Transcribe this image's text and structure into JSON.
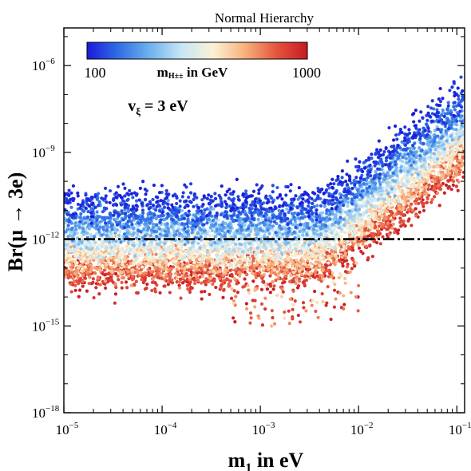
{
  "chart_data": {
    "type": "scatter",
    "title": "Normal Hierarchy",
    "xlabel": {
      "main": "m",
      "sub": "1",
      "rest": " in eV"
    },
    "ylabel": "Br(μ → 3e)",
    "x_scale": "log",
    "y_scale": "log",
    "xlim": [
      1e-05,
      0.12
    ],
    "ylim": [
      1e-18,
      2e-05
    ],
    "x_ticks": [
      {
        "value": 1e-05,
        "base": "10",
        "exp": "−5"
      },
      {
        "value": 0.0001,
        "base": "10",
        "exp": "−4"
      },
      {
        "value": 0.001,
        "base": "10",
        "exp": "−3"
      },
      {
        "value": 0.01,
        "base": "10",
        "exp": "−2"
      },
      {
        "value": 0.1,
        "base": "10",
        "exp": "−1"
      }
    ],
    "y_ticks": [
      {
        "value": 1e-18,
        "base": "10",
        "exp": "−18"
      },
      {
        "value": 1e-15,
        "base": "10",
        "exp": "−15"
      },
      {
        "value": 1e-12,
        "base": "10",
        "exp": "−12"
      },
      {
        "value": 1e-09,
        "base": "10",
        "exp": "−9"
      },
      {
        "value": 1e-06,
        "base": "10",
        "exp": "−6"
      }
    ],
    "reference_line": {
      "y": 1e-12,
      "style": "dash-dot",
      "color": "#000000"
    },
    "colorbar": {
      "min": 100,
      "max": 1000,
      "min_label": "100",
      "max_label": "1000",
      "label": {
        "main": "m",
        "sub": "H±±",
        "rest": " in GeV"
      },
      "colors": [
        "#1a1ad8",
        "#2f6fe6",
        "#6fb2ef",
        "#c6e6f6",
        "#fbf2d6",
        "#f7b37d",
        "#e6563f",
        "#c71a22"
      ],
      "placement": "top-left"
    },
    "annotation": {
      "main": "v",
      "sub": "ξ",
      "rest": " = 3 eV"
    },
    "series": {
      "points_per_column": 42,
      "x_columns": 150,
      "description_model": {
        "floor_at_small_m1": {
          "m100": 3e-11,
          "m1000": 4e-14
        },
        "slope_exponent_above_knee": 4,
        "knee_m1": 0.004,
        "spread_decades": 1.1
      }
    }
  }
}
